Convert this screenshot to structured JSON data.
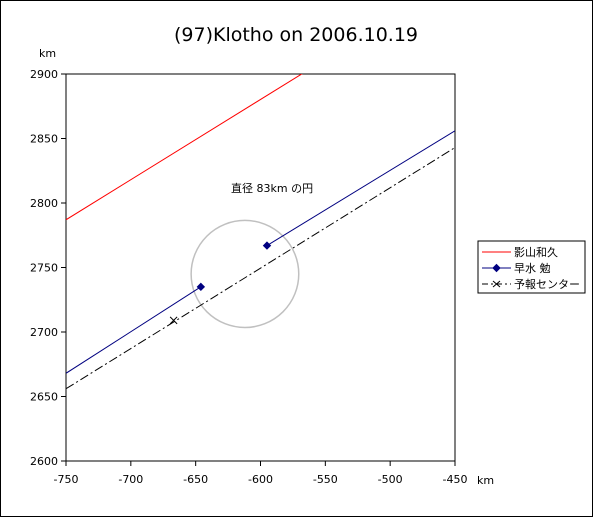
{
  "chart_data": {
    "type": "scatter",
    "title": "(97)Klotho on 2006.10.19",
    "xlabel": "km",
    "ylabel": "km",
    "xlim": [
      -750,
      -450
    ],
    "ylim": [
      2600,
      2900
    ],
    "x_ticks": [
      "-750",
      "-700",
      "-650",
      "-600",
      "-550",
      "-500",
      "-450"
    ],
    "y_ticks": [
      "2600",
      "2650",
      "2700",
      "2750",
      "2800",
      "2850",
      "2900"
    ],
    "grid": false,
    "legend_position": "right",
    "annotation": "直径 83km の円",
    "circle": {
      "center": [
        -612,
        2745
      ],
      "diameter": 83
    },
    "series": [
      {
        "name": "影山和久",
        "color": "#ff0000",
        "style": "solid",
        "marker": "none",
        "segments": [
          {
            "x": [
              -750,
              -565
            ],
            "y": [
              2787,
              2902
            ]
          }
        ]
      },
      {
        "name": "早水 勉",
        "color": "#000080",
        "style": "solid",
        "marker": "diamond",
        "segments": [
          {
            "x": [
              -750,
              -646
            ],
            "y": [
              2668,
              2735
            ]
          },
          {
            "x": [
              -595,
              -450
            ],
            "y": [
              2767,
              2856
            ]
          }
        ],
        "points": [
          {
            "x": -646,
            "y": 2735
          },
          {
            "x": -595,
            "y": 2767
          }
        ]
      },
      {
        "name": "予報センター",
        "color": "#000000",
        "style": "dashdot",
        "marker": "x",
        "segments": [
          {
            "x": [
              -750,
              -450
            ],
            "y": [
              2656,
              2843
            ]
          }
        ],
        "points": [
          {
            "x": -667,
            "y": 2709
          }
        ]
      }
    ]
  }
}
